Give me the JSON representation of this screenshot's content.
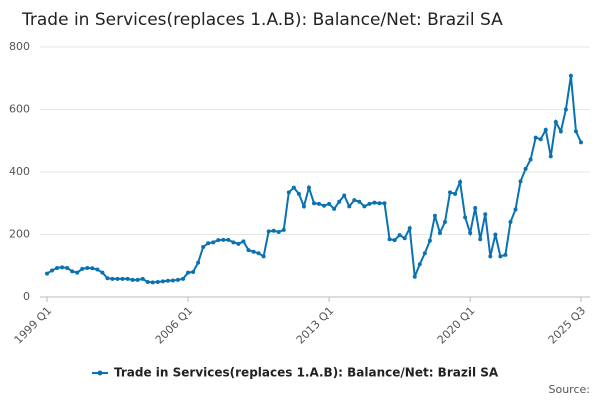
{
  "chart_data": {
    "type": "line",
    "title": "Trade in Services(replaces 1.A.B): Balance/Net: Brazil SA",
    "source": "Source:",
    "categories": [
      "1999 Q1",
      null,
      null,
      null,
      null,
      null,
      null,
      null,
      null,
      null,
      null,
      null,
      null,
      null,
      null,
      null,
      null,
      null,
      null,
      null,
      null,
      null,
      null,
      null,
      null,
      null,
      null,
      null,
      "2006 Q1",
      null,
      null,
      null,
      null,
      null,
      null,
      null,
      null,
      null,
      null,
      null,
      null,
      null,
      null,
      null,
      null,
      null,
      null,
      null,
      null,
      null,
      null,
      null,
      null,
      null,
      null,
      null,
      "2013 Q1",
      null,
      null,
      null,
      null,
      null,
      null,
      null,
      null,
      null,
      null,
      null,
      null,
      null,
      null,
      null,
      null,
      null,
      null,
      null,
      null,
      null,
      null,
      null,
      null,
      null,
      null,
      null,
      "2020 Q1",
      null,
      null,
      null,
      null,
      null,
      null,
      null,
      null,
      null,
      null,
      null,
      null,
      null,
      null,
      null,
      null,
      null,
      null,
      null,
      null,
      null,
      "2025 Q3"
    ],
    "series": [
      {
        "name": "Trade in Services(replaces 1.A.B): Balance/Net: Brazil SA",
        "color": "#0a72b3",
        "values": [
          75,
          85,
          93,
          95,
          93,
          82,
          78,
          90,
          93,
          92,
          88,
          78,
          60,
          58,
          58,
          58,
          58,
          55,
          55,
          58,
          48,
          47,
          48,
          50,
          52,
          53,
          55,
          58,
          78,
          80,
          110,
          160,
          172,
          175,
          182,
          183,
          183,
          175,
          170,
          178,
          150,
          145,
          140,
          130,
          210,
          212,
          208,
          215,
          335,
          350,
          330,
          290,
          350,
          300,
          298,
          292,
          298,
          282,
          305,
          325,
          290,
          310,
          305,
          290,
          298,
          302,
          300,
          300,
          185,
          182,
          198,
          188,
          220,
          65,
          105,
          140,
          180,
          260,
          205,
          240,
          335,
          330,
          368,
          255,
          205,
          285,
          185,
          265,
          130,
          200,
          130,
          135,
          240,
          280,
          370,
          410,
          440,
          510,
          505,
          535,
          450,
          560,
          530,
          600,
          708,
          530,
          495
        ]
      }
    ],
    "ylim": [
      0,
      800
    ],
    "yticks": [
      0,
      200,
      400,
      600,
      800
    ],
    "grid": true
  }
}
